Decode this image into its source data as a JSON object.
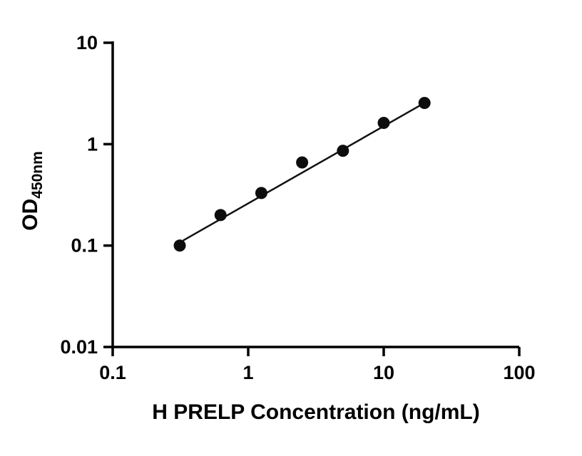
{
  "chart_data": {
    "type": "scatter",
    "title": "",
    "xlabel": "H PRELP Concentration (ng/mL)",
    "ylabel_main": "OD",
    "ylabel_sub": "450nm",
    "x_scale": "log",
    "y_scale": "log",
    "xlim": [
      0.1,
      100
    ],
    "ylim": [
      0.01,
      10
    ],
    "x_ticks": [
      0.1,
      1,
      10,
      100
    ],
    "x_tick_labels": [
      "0.1",
      "1",
      "10",
      "100"
    ],
    "y_ticks": [
      0.01,
      0.1,
      1,
      10
    ],
    "y_tick_labels": [
      "0.01",
      "0.1",
      "1",
      "10"
    ],
    "grid": "off",
    "legend": "none",
    "points": [
      {
        "x": 0.3125,
        "y": 0.1
      },
      {
        "x": 0.625,
        "y": 0.2
      },
      {
        "x": 1.25,
        "y": 0.33
      },
      {
        "x": 2.5,
        "y": 0.66
      },
      {
        "x": 5,
        "y": 0.86
      },
      {
        "x": 10,
        "y": 1.62
      },
      {
        "x": 20,
        "y": 2.55
      }
    ],
    "trend_line": {
      "x1": 0.33,
      "y1": 0.112,
      "x2": 20,
      "y2": 2.55
    },
    "marker_radius": 8.5,
    "colors": {
      "point": "#0d0d0d",
      "line": "#111111",
      "axis": "#000000",
      "background": "#ffffff"
    }
  }
}
